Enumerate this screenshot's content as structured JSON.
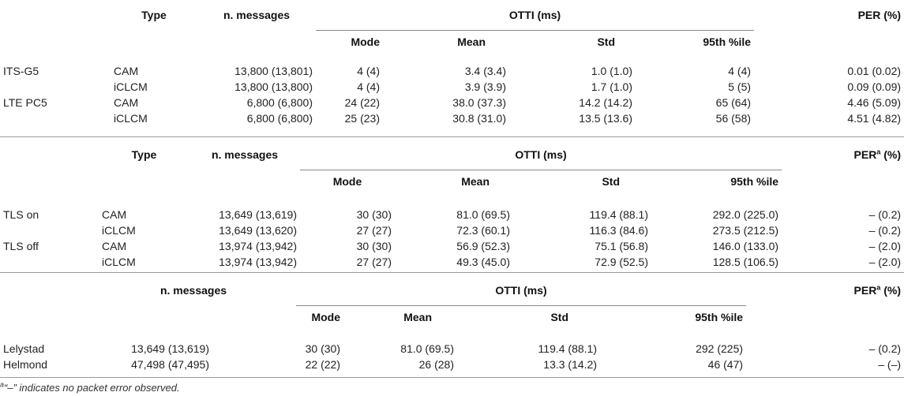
{
  "table1": {
    "headers": {
      "type": "Type",
      "messages": "n. messages",
      "otti": "OTTI (ms)",
      "per": "PER (%)",
      "mode": "Mode",
      "mean": "Mean",
      "std": "Std",
      "p95": "95th %ile"
    },
    "rows": [
      {
        "group": "ITS-G5",
        "type": "CAM",
        "messages": "13,800 (13,801)",
        "mode": "4 (4)",
        "mean": "3.4 (3.4)",
        "std": "1.0 (1.0)",
        "p95": "4 (4)",
        "per": "0.01 (0.02)"
      },
      {
        "group": "",
        "type": "iCLCM",
        "messages": "13,800 (13,800)",
        "mode": "4 (4)",
        "mean": "3.9 (3.9)",
        "std": "1.7 (1.0)",
        "p95": "5 (5)",
        "per": "0.09 (0.09)"
      },
      {
        "group": "LTE PC5",
        "type": "CAM",
        "messages": "6,800 (6,800)",
        "mode": "24 (22)",
        "mean": "38.0 (37.3)",
        "std": "14.2 (14.2)",
        "p95": "65 (64)",
        "per": "4.46 (5.09)"
      },
      {
        "group": "",
        "type": "iCLCM",
        "messages": "6,800 (6,800)",
        "mode": "25 (23)",
        "mean": "30.8 (31.0)",
        "std": "13.5 (13.6)",
        "p95": "56 (58)",
        "per": "4.51 (4.82)"
      }
    ]
  },
  "table2": {
    "headers": {
      "type": "Type",
      "messages": "n. messages",
      "otti": "OTTI (ms)",
      "per_main": "PER",
      "per_sup": "a",
      "per_unit": " (%)",
      "mode": "Mode",
      "mean": "Mean",
      "std": "Std",
      "p95": "95th %ile"
    },
    "rows": [
      {
        "group": "TLS on",
        "type": "CAM",
        "messages": "13,649 (13,619)",
        "mode": "30 (30)",
        "mean": "81.0 (69.5)",
        "std": "119.4 (88.1)",
        "p95": "292.0 (225.0)",
        "per": "– (0.2)"
      },
      {
        "group": "",
        "type": "iCLCM",
        "messages": "13,649 (13,620)",
        "mode": "27 (27)",
        "mean": "72.3 (60.1)",
        "std": "116.3 (84.6)",
        "p95": "273.5 (212.5)",
        "per": "– (0.2)"
      },
      {
        "group": "TLS off",
        "type": "CAM",
        "messages": "13,974 (13,942)",
        "mode": "30 (30)",
        "mean": "56.9 (52.3)",
        "std": "75.1 (56.8)",
        "p95": "146.0 (133.0)",
        "per": "– (2.0)"
      },
      {
        "group": "",
        "type": "iCLCM",
        "messages": "13,974 (13,942)",
        "mode": "27 (27)",
        "mean": "49.3 (45.0)",
        "std": "72.9 (52.5)",
        "p95": "128.5 (106.5)",
        "per": "– (2.0)"
      }
    ]
  },
  "table3": {
    "headers": {
      "messages": "n. messages",
      "otti": "OTTI (ms)",
      "per_main": "PER",
      "per_sup": "a",
      "per_unit": " (%)",
      "mode": "Mode",
      "mean": "Mean",
      "std": "Std",
      "p95": "95th %ile"
    },
    "rows": [
      {
        "group": "Lelystad",
        "messages": "13,649 (13,619)",
        "mode": "30 (30)",
        "mean": "81.0 (69.5)",
        "std": "119.4 (88.1)",
        "p95": "292 (225)",
        "per": "– (0.2)"
      },
      {
        "group": "Helmond",
        "messages": "47,498 (47,495)",
        "mode": "22 (22)",
        "mean": "26 (28)",
        "std": "13.3 (14.2)",
        "p95": "46 (47)",
        "per": "– (–)"
      }
    ]
  },
  "footnote": {
    "sup": "a",
    "text": "“–” indicates no packet error observed."
  }
}
